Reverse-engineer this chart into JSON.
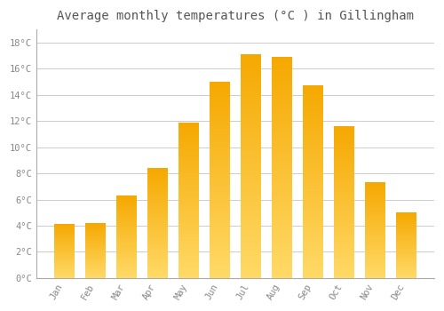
{
  "months": [
    "Jan",
    "Feb",
    "Mar",
    "Apr",
    "May",
    "Jun",
    "Jul",
    "Aug",
    "Sep",
    "Oct",
    "Nov",
    "Dec"
  ],
  "values": [
    4.1,
    4.2,
    6.3,
    8.4,
    11.9,
    15.0,
    17.1,
    16.9,
    14.7,
    11.6,
    7.3,
    5.0
  ],
  "bar_color_top": "#F5A800",
  "bar_color_bottom": "#FFD966",
  "background_color": "#FFFFFF",
  "plot_bg_color": "#FFFFFF",
  "grid_color": "#CCCCCC",
  "title": "Average monthly temperatures (°C ) in Gillingham",
  "title_fontsize": 10,
  "tick_label_color": "#888888",
  "title_color": "#555555",
  "ylim": [
    0,
    19
  ],
  "yticks": [
    0,
    2,
    4,
    6,
    8,
    10,
    12,
    14,
    16,
    18
  ],
  "ytick_labels": [
    "0°C",
    "2°C",
    "4°C",
    "6°C",
    "8°C",
    "10°C",
    "12°C",
    "14°C",
    "16°C",
    "18°C"
  ]
}
